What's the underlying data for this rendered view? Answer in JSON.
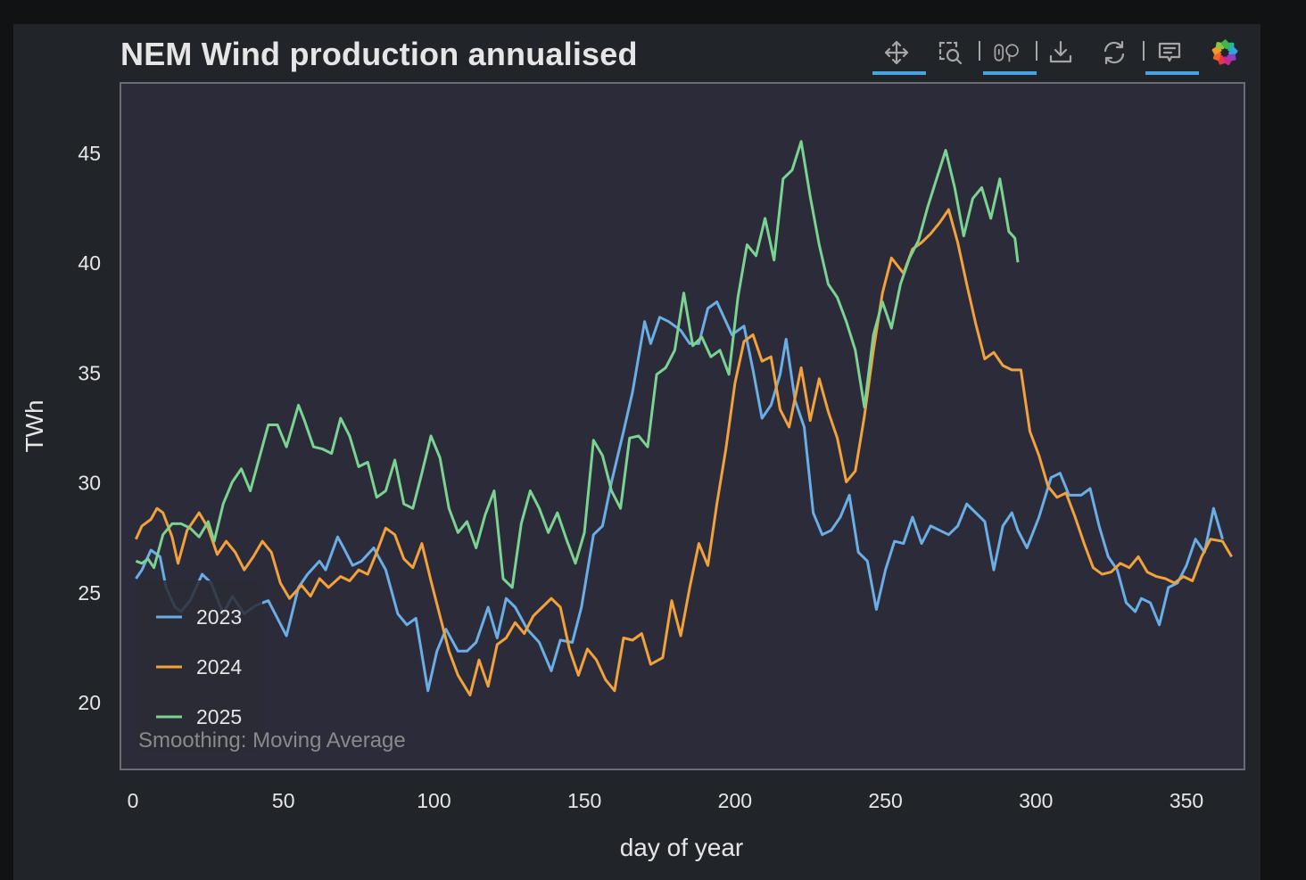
{
  "page": {
    "title": "NEM Wind production annualised"
  },
  "toolbar": {
    "tools": [
      {
        "name": "pan-tool",
        "icon": "move-icon",
        "active": true
      },
      {
        "name": "box-zoom-tool",
        "icon": "box-zoom-icon",
        "active": false
      },
      {
        "name": "wheel-zoom-tool",
        "icon": "wheel-zoom-icon",
        "active": true
      },
      {
        "name": "save-tool",
        "icon": "download-icon",
        "active": false
      },
      {
        "name": "reset-tool",
        "icon": "refresh-icon",
        "active": false
      },
      {
        "name": "hover-tool",
        "icon": "tooltip-icon",
        "active": true
      },
      {
        "name": "bokeh-logo",
        "icon": "bokeh-logo-icon",
        "active": false
      }
    ]
  },
  "colors": {
    "c2023": "#6aaee6",
    "c2024": "#f2a23c",
    "c2025": "#7bd392",
    "plot_bg": "#2c2b39",
    "panel_bg": "#212429"
  },
  "chart_data": {
    "type": "line",
    "title": "NEM Wind production annualised",
    "xlabel": "day of year",
    "ylabel": "TWh",
    "xlim": [
      -5,
      368
    ],
    "ylim": [
      17.0,
      48.2
    ],
    "xticks": [
      0,
      50,
      100,
      150,
      200,
      250,
      300,
      350
    ],
    "yticks": [
      20,
      25,
      30,
      35,
      40,
      45
    ],
    "grid": false,
    "legend_position": "bottom-left",
    "annotation": "Smoothing: Moving Average",
    "series": [
      {
        "name": "2023",
        "color": "#6aaee6",
        "x": [
          1,
          3,
          6,
          9,
          11,
          14,
          16,
          19,
          23,
          26,
          30,
          33,
          37,
          41,
          45,
          48,
          51,
          55,
          58,
          62,
          64,
          68,
          70,
          73,
          76,
          80,
          84,
          88,
          91,
          94,
          98,
          101,
          104,
          108,
          111,
          114,
          118,
          121,
          124,
          127,
          131,
          135,
          139,
          142,
          146,
          149,
          153,
          156,
          159,
          163,
          166,
          170,
          172,
          175,
          178,
          182,
          185,
          188,
          191,
          194,
          199,
          203,
          206,
          209,
          212,
          215,
          217,
          220,
          223,
          226,
          229,
          232,
          235,
          238,
          241,
          244,
          247,
          250,
          253,
          256,
          259,
          262,
          265,
          268,
          271,
          274,
          277,
          283,
          286,
          289,
          292,
          294,
          297,
          301,
          305,
          308,
          311,
          315,
          318,
          321,
          324,
          327,
          330,
          333,
          335,
          338,
          341,
          344,
          347,
          350,
          353,
          356,
          359,
          362
        ],
        "y": [
          25.6,
          26.0,
          26.9,
          26.6,
          25.2,
          24.3,
          24.1,
          24.6,
          25.8,
          25.4,
          24.0,
          24.8,
          24.0,
          24.4,
          24.6,
          23.8,
          23.0,
          25.2,
          25.8,
          26.4,
          26.0,
          27.5,
          27.0,
          26.2,
          26.4,
          27.0,
          26.0,
          24.0,
          23.5,
          23.8,
          20.5,
          22.3,
          23.3,
          22.3,
          22.3,
          22.7,
          24.3,
          22.9,
          24.7,
          24.3,
          23.3,
          22.7,
          21.4,
          22.8,
          22.7,
          24.3,
          27.6,
          28.0,
          30.0,
          32.3,
          34.1,
          37.3,
          36.3,
          37.5,
          37.3,
          36.9,
          36.3,
          36.3,
          37.9,
          38.2,
          36.7,
          37.1,
          35.1,
          32.9,
          33.5,
          34.9,
          36.5,
          33.7,
          32.5,
          28.6,
          27.6,
          27.8,
          28.4,
          29.4,
          26.8,
          26.4,
          24.2,
          26.0,
          27.3,
          27.2,
          28.4,
          27.2,
          28.0,
          27.8,
          27.6,
          28.0,
          29.0,
          28.2,
          26.0,
          28.0,
          28.6,
          27.8,
          27.0,
          28.4,
          30.2,
          30.4,
          29.4,
          29.4,
          29.7,
          28.0,
          26.6,
          26.0,
          24.5,
          24.1,
          24.7,
          24.5,
          23.5,
          25.2,
          25.4,
          26.2,
          27.4,
          26.8,
          28.8,
          27.4
        ]
      },
      {
        "name": "2024",
        "color": "#f2a23c",
        "x": [
          1,
          3,
          6,
          8,
          10,
          13,
          15,
          18,
          22,
          25,
          28,
          31,
          34,
          37,
          40,
          43,
          46,
          49,
          52,
          56,
          59,
          62,
          65,
          69,
          72,
          75,
          78,
          81,
          84,
          87,
          90,
          93,
          96,
          99,
          102,
          105,
          108,
          112,
          115,
          118,
          121,
          124,
          127,
          130,
          133,
          136,
          139,
          142,
          145,
          148,
          151,
          154,
          157,
          160,
          163,
          166,
          169,
          172,
          176,
          179,
          182,
          185,
          188,
          191,
          194,
          197,
          200,
          203,
          206,
          209,
          212,
          215,
          218,
          222,
          225,
          228,
          231,
          234,
          237,
          240,
          243,
          246,
          249,
          252,
          256,
          259,
          262,
          265,
          268,
          271,
          274,
          277,
          280,
          283,
          286,
          289,
          292,
          295,
          298,
          301,
          304,
          307,
          310,
          313,
          316,
          319,
          322,
          325,
          328,
          331,
          334,
          337,
          340,
          343,
          346,
          349,
          352,
          355,
          358,
          362,
          365
        ],
        "y": [
          27.4,
          28.0,
          28.3,
          28.8,
          28.6,
          27.5,
          26.3,
          27.8,
          28.6,
          27.9,
          26.7,
          27.3,
          26.8,
          26.0,
          26.6,
          27.3,
          26.8,
          25.4,
          24.7,
          25.3,
          24.8,
          25.6,
          25.2,
          25.7,
          25.5,
          26.0,
          25.8,
          26.8,
          27.9,
          27.6,
          26.5,
          26.1,
          27.2,
          25.5,
          23.9,
          22.3,
          21.2,
          20.3,
          21.9,
          20.7,
          22.6,
          22.9,
          23.6,
          23.1,
          23.9,
          24.3,
          24.7,
          24.3,
          22.4,
          21.2,
          22.4,
          21.9,
          21.0,
          20.5,
          22.9,
          22.8,
          23.1,
          21.7,
          22.0,
          24.6,
          23.0,
          25.2,
          27.2,
          26.2,
          29.0,
          31.5,
          34.5,
          36.4,
          36.7,
          35.5,
          35.7,
          33.3,
          32.5,
          35.2,
          32.8,
          34.7,
          33.2,
          32.0,
          30.0,
          30.5,
          33.0,
          36.0,
          38.6,
          40.2,
          39.5,
          40.6,
          40.9,
          41.3,
          41.8,
          42.4,
          40.9,
          39.0,
          37.2,
          35.6,
          35.9,
          35.3,
          35.1,
          35.1,
          32.3,
          31.2,
          29.8,
          29.3,
          29.5,
          28.4,
          27.2,
          26.1,
          25.8,
          25.9,
          26.3,
          26.1,
          26.6,
          25.9,
          25.7,
          25.6,
          25.4,
          25.7,
          25.5,
          26.6,
          27.4,
          27.3,
          26.6
        ]
      },
      {
        "name": "2025",
        "color": "#7bd392",
        "x": [
          1,
          3,
          5,
          7,
          10,
          13,
          16,
          19,
          22,
          25,
          27,
          30,
          33,
          36,
          39,
          42,
          45,
          48,
          51,
          55,
          57,
          60,
          63,
          66,
          69,
          72,
          75,
          78,
          81,
          84,
          87,
          90,
          93,
          96,
          99,
          102,
          105,
          108,
          111,
          114,
          117,
          120,
          123,
          126,
          129,
          132,
          135,
          138,
          141,
          144,
          147,
          150,
          153,
          156,
          159,
          162,
          165,
          168,
          171,
          174,
          177,
          180,
          183,
          186,
          189,
          192,
          195,
          198,
          201,
          204,
          207,
          210,
          213,
          216,
          219,
          222,
          225,
          228,
          231,
          234,
          237,
          240,
          243,
          246,
          249,
          252,
          255,
          258,
          261,
          264,
          267,
          270,
          273,
          276,
          279,
          282,
          285,
          288,
          291,
          293,
          294
        ],
        "y": [
          26.4,
          26.3,
          26.5,
          26.1,
          27.6,
          28.1,
          28.1,
          27.9,
          27.5,
          28.2,
          27.3,
          29.0,
          30.0,
          30.6,
          29.6,
          31.1,
          32.6,
          32.6,
          31.6,
          33.5,
          32.8,
          31.6,
          31.5,
          31.3,
          32.9,
          32.1,
          30.7,
          30.9,
          29.3,
          29.6,
          31.0,
          29.0,
          28.8,
          30.4,
          32.1,
          31.1,
          28.8,
          27.7,
          28.2,
          27.0,
          28.5,
          29.6,
          25.6,
          25.2,
          28.1,
          29.6,
          28.8,
          27.7,
          28.6,
          27.4,
          26.3,
          27.7,
          31.9,
          31.2,
          29.6,
          28.8,
          32.0,
          32.1,
          31.6,
          34.9,
          35.2,
          36.0,
          38.6,
          36.2,
          36.6,
          35.7,
          36.0,
          34.9,
          38.4,
          40.8,
          40.3,
          42.0,
          40.1,
          43.8,
          44.2,
          45.5,
          43.0,
          40.8,
          39.0,
          38.4,
          37.3,
          36.0,
          33.4,
          36.7,
          38.2,
          37.0,
          39.0,
          40.2,
          41.0,
          42.5,
          43.8,
          45.1,
          43.4,
          41.2,
          42.9,
          43.4,
          42.0,
          43.8,
          41.4,
          41.1,
          40.0
        ]
      }
    ]
  }
}
